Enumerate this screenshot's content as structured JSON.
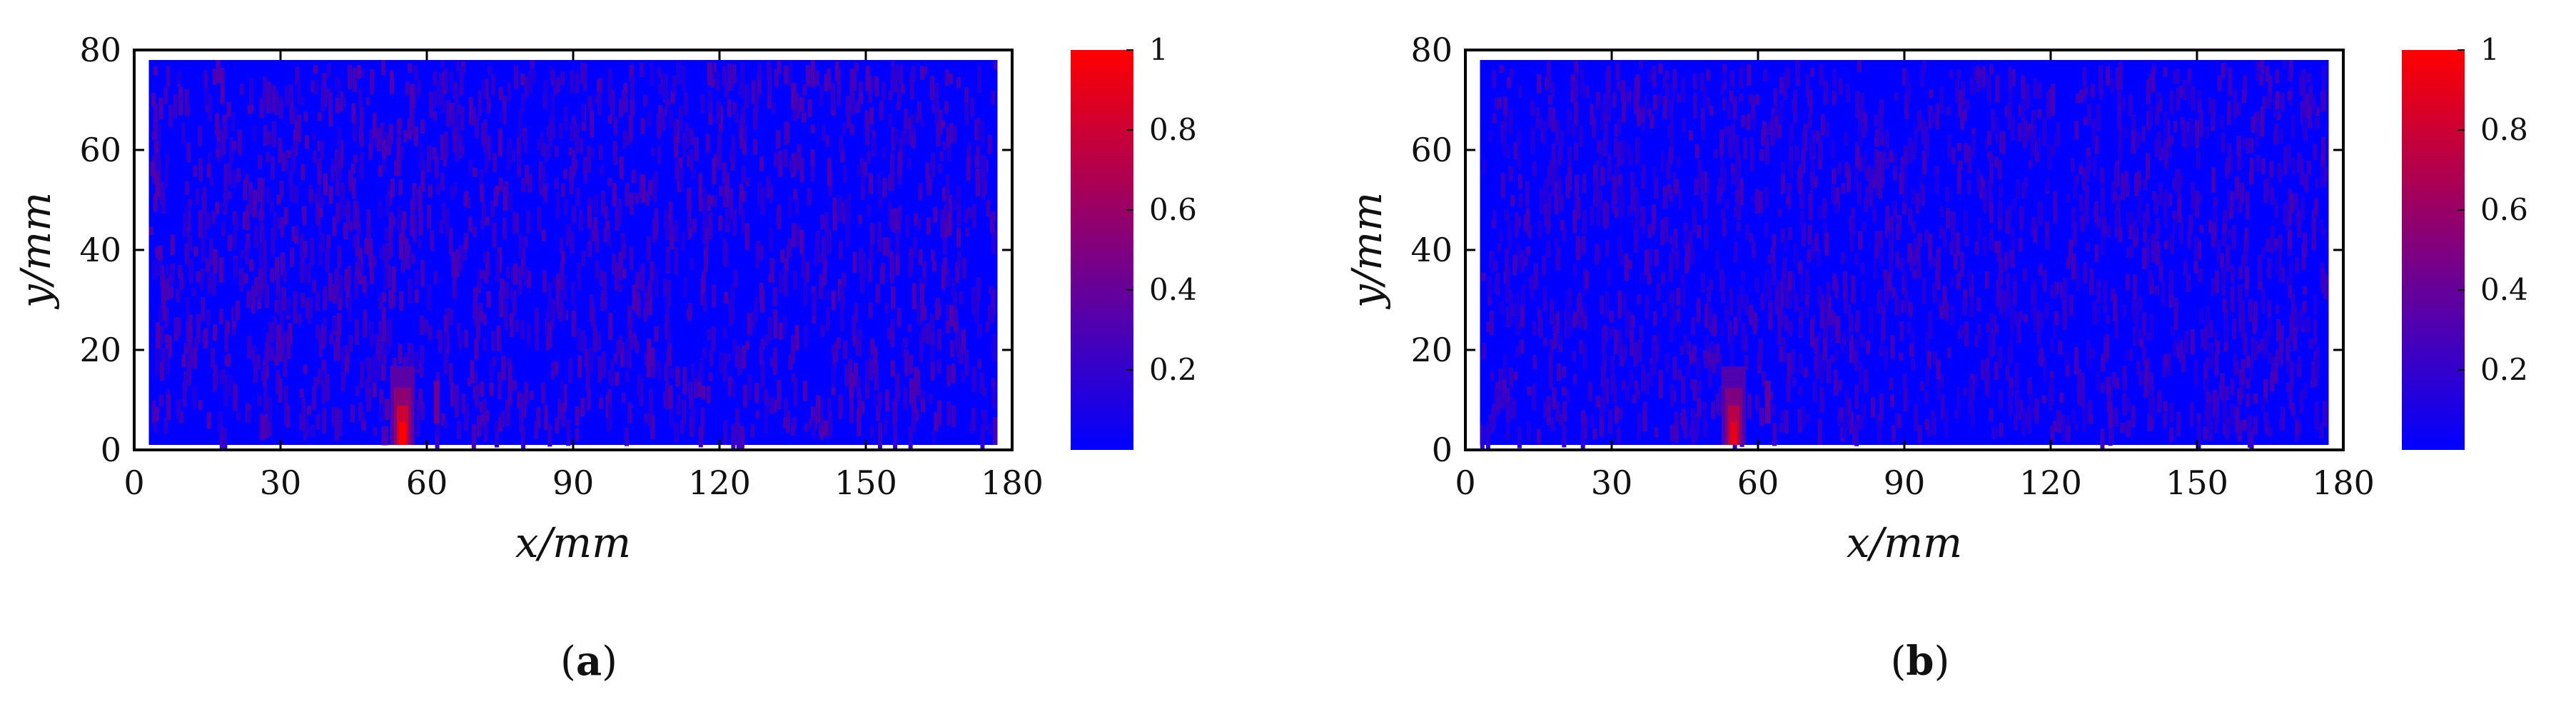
{
  "chart_data": [
    {
      "type": "heatmap",
      "panel_label": "a",
      "xlabel": "x/mm",
      "ylabel": "y/mm",
      "xlim": [
        0,
        180
      ],
      "ylim": [
        0,
        80
      ],
      "xticks": [
        0,
        30,
        60,
        90,
        120,
        150,
        180
      ],
      "yticks": [
        0,
        20,
        40,
        60,
        80
      ],
      "colorbar": {
        "range": [
          0,
          1
        ],
        "ticks": [
          0.2,
          0.4,
          0.6,
          0.8,
          1
        ],
        "colors": [
          "#0000ff",
          "#ff0000"
        ]
      },
      "data_extent": {
        "x": [
          3,
          177
        ],
        "y": [
          1,
          78
        ]
      },
      "background_value": 0.0,
      "noise_level": 0.25,
      "hotspot": {
        "x": 55,
        "y": 2,
        "value": 1.0
      }
    },
    {
      "type": "heatmap",
      "panel_label": "b",
      "xlabel": "x/mm",
      "ylabel": "y/mm",
      "xlim": [
        0,
        180
      ],
      "ylim": [
        0,
        80
      ],
      "xticks": [
        0,
        30,
        60,
        90,
        120,
        150,
        180
      ],
      "yticks": [
        0,
        20,
        40,
        60,
        80
      ],
      "colorbar": {
        "range": [
          0,
          1
        ],
        "ticks": [
          0.2,
          0.4,
          0.6,
          0.8,
          1
        ],
        "colors": [
          "#0000ff",
          "#ff0000"
        ]
      },
      "data_extent": {
        "x": [
          3,
          177
        ],
        "y": [
          1,
          78
        ]
      },
      "background_value": 0.0,
      "noise_level": 0.22,
      "hotspot": {
        "x": 55,
        "y": 3,
        "value": 0.9
      }
    }
  ]
}
